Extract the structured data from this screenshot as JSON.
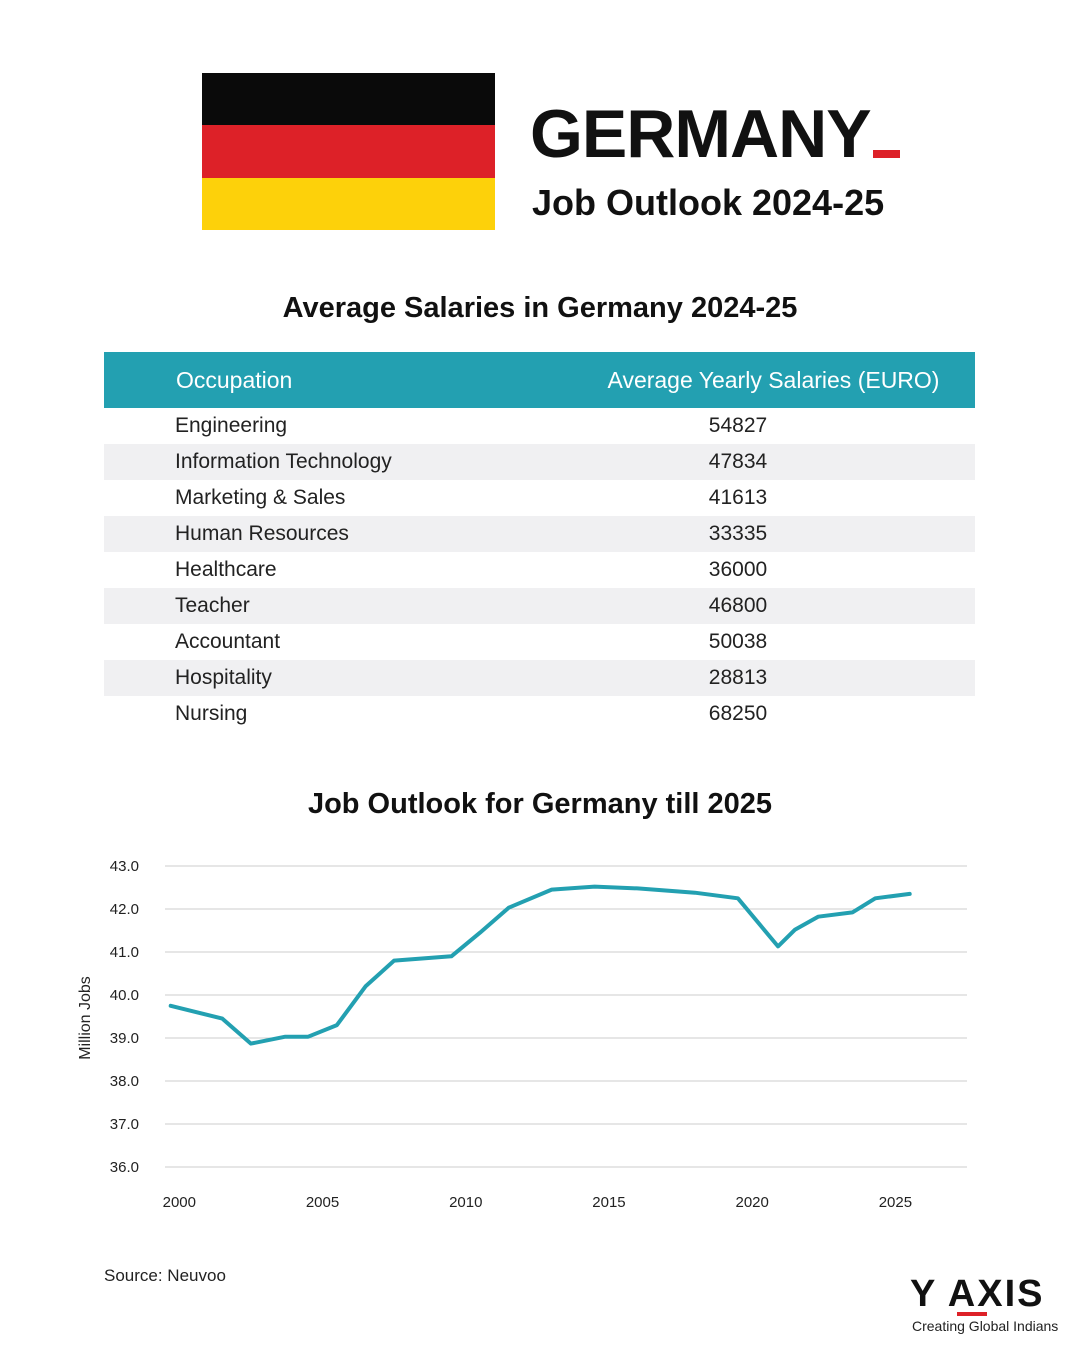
{
  "colors": {
    "flag_black": "#0a0a0a",
    "flag_red": "#dd2128",
    "flag_gold": "#fdd10a",
    "accent_teal": "#23a0b1",
    "accent_red": "#dd2128",
    "grid": "#cccccc"
  },
  "header": {
    "title": "GERMANY",
    "subtitle": "Job Outlook 2024-25"
  },
  "salary_table": {
    "title": "Average Salaries in Germany 2024-25",
    "columns": [
      "Occupation",
      "Average Yearly Salaries (EURO)"
    ],
    "rows": [
      {
        "occupation": "Engineering",
        "salary": "54827"
      },
      {
        "occupation": "Information Technology",
        "salary": "47834"
      },
      {
        "occupation": "Marketing & Sales",
        "salary": "41613"
      },
      {
        "occupation": "Human Resources",
        "salary": "33335"
      },
      {
        "occupation": "Healthcare",
        "salary": "36000"
      },
      {
        "occupation": "Teacher",
        "salary": "46800"
      },
      {
        "occupation": "Accountant",
        "salary": "50038"
      },
      {
        "occupation": "Hospitality",
        "salary": "28813"
      },
      {
        "occupation": "Nursing",
        "salary": "68250"
      }
    ]
  },
  "chart_data": {
    "type": "line",
    "title": "Job Outlook for Germany till 2025",
    "xlabel": "",
    "ylabel": "Million Jobs",
    "xlim": [
      1999.5,
      2027.5
    ],
    "ylim": [
      36.0,
      43.0
    ],
    "x_ticks": [
      2000,
      2005,
      2010,
      2015,
      2020,
      2025
    ],
    "y_ticks": [
      "36.0",
      "37.0",
      "38.0",
      "39.0",
      "40.0",
      "41.0",
      "42.0",
      "43.0"
    ],
    "grid": true,
    "series": [
      {
        "name": "Million Jobs",
        "x": [
          1999.7,
          2001.5,
          2002.5,
          2003.7,
          2004.5,
          2005.5,
          2006.5,
          2007.5,
          2009.5,
          2010.5,
          2011.5,
          2013.0,
          2014.5,
          2016.0,
          2018.0,
          2019.5,
          2020.9,
          2021.5,
          2022.3,
          2023.5,
          2024.3,
          2025.5
        ],
        "values": [
          39.75,
          39.45,
          38.87,
          39.03,
          39.03,
          39.3,
          40.2,
          40.8,
          40.9,
          41.45,
          42.03,
          42.45,
          42.52,
          42.48,
          42.38,
          42.25,
          41.13,
          41.52,
          41.82,
          41.92,
          42.25,
          42.35
        ]
      }
    ]
  },
  "source": "Source: Neuvoo",
  "logo": {
    "name": "Y AXIS",
    "tagline": "Creating Global Indians"
  }
}
